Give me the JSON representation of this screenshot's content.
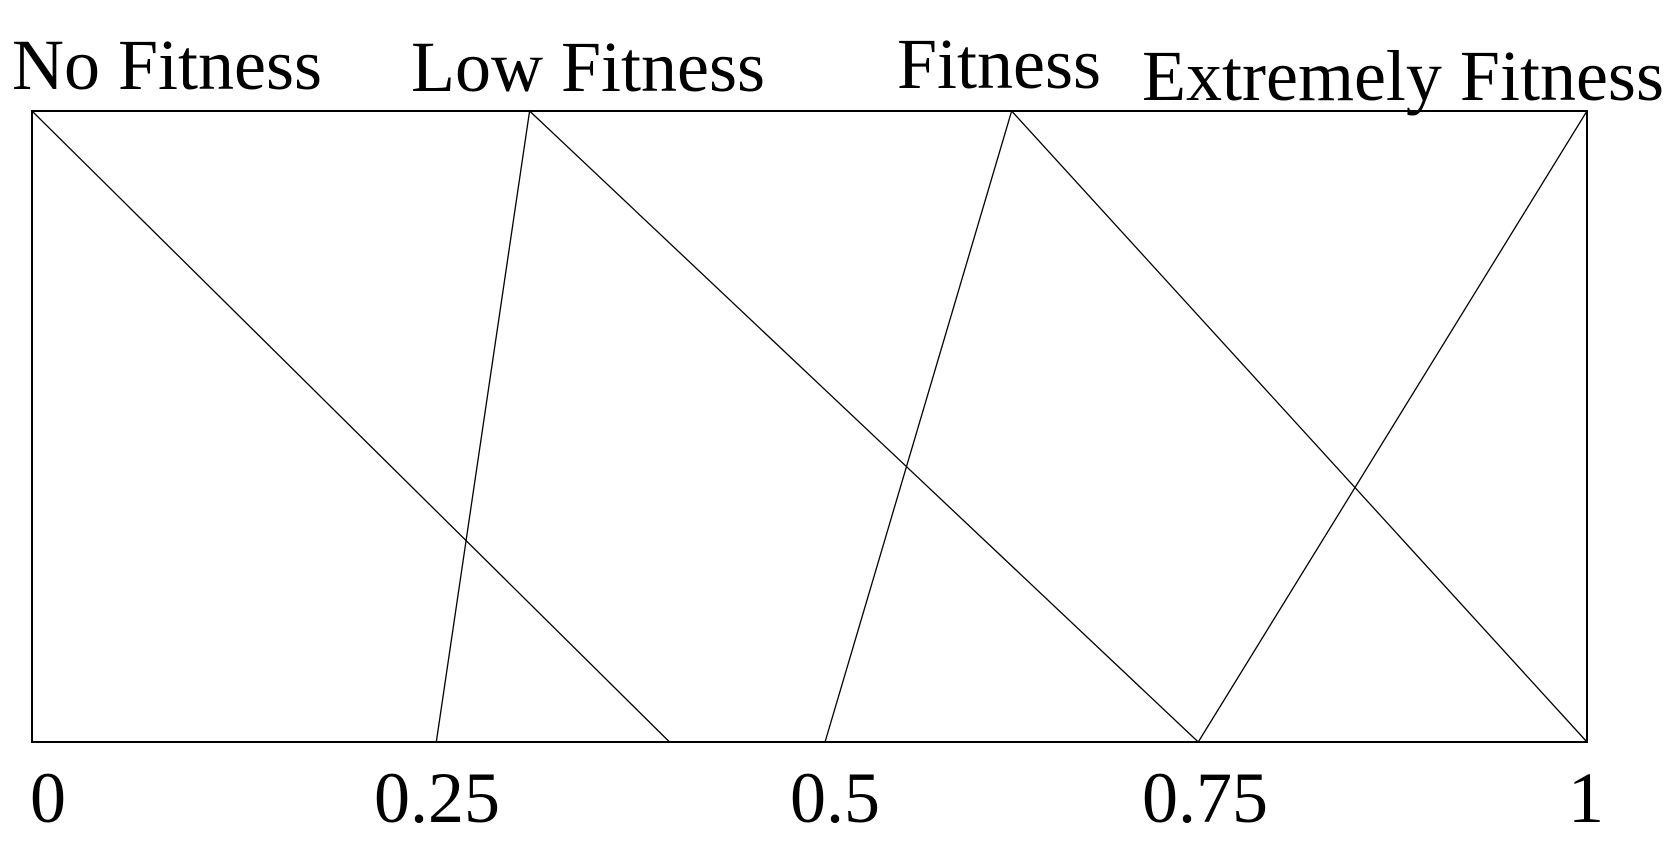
{
  "figure": {
    "set_labels": [
      "No Fitness",
      "Low Fitness",
      "Fitness",
      "Extremely Fitness"
    ],
    "axis_ticks": [
      "0",
      "0.25",
      "0.5",
      "0.75",
      "1"
    ],
    "line_color": "#000000",
    "background_color": "#ffffff"
  },
  "chart_data": {
    "type": "line",
    "title": "",
    "xlabel": "",
    "ylabel": "",
    "xlim": [
      0,
      1
    ],
    "ylim": [
      0,
      1
    ],
    "grid": false,
    "legend_position": "labels-above-plot",
    "x_tick_values": [
      0,
      0.25,
      0.5,
      0.75,
      1
    ],
    "x_tick_labels": [
      "0",
      "0.25",
      "0.5",
      "0.75",
      "1"
    ],
    "series": [
      {
        "name": "No Fitness",
        "points": [
          [
            0,
            1
          ],
          [
            0.41,
            0
          ]
        ]
      },
      {
        "name": "Low Fitness",
        "points": [
          [
            0.26,
            0
          ],
          [
            0.32,
            1
          ],
          [
            0.75,
            0
          ]
        ]
      },
      {
        "name": "Fitness",
        "points": [
          [
            0.51,
            0
          ],
          [
            0.63,
            1
          ],
          [
            1,
            0
          ]
        ]
      },
      {
        "name": "Extremely Fitness",
        "points": [
          [
            0.75,
            0
          ],
          [
            1,
            1
          ]
        ]
      }
    ]
  }
}
